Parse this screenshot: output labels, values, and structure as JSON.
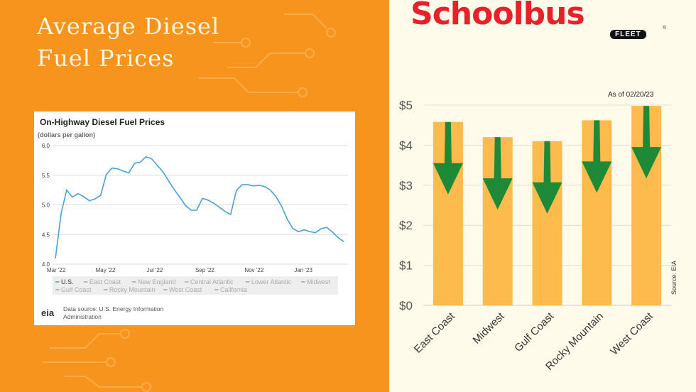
{
  "title_lines": [
    "Average Diesel",
    "Fuel Prices"
  ],
  "brand": {
    "logo_text": "Schoolbus",
    "fleet_text": "FLEET",
    "registered": "®"
  },
  "left_chart": {
    "title": "On-Highway Diesel Fuel Prices",
    "subtitle": "(dollars per gallon)",
    "legend": [
      "U.S.",
      "East Coast",
      "New England",
      "Central Atlantic",
      "Lower Atlantic",
      "Midwest",
      "Gulf Coast",
      "Rocky Mountain",
      "West Coast",
      "California"
    ],
    "source_text": "Data source: U.S. Energy Information Administration",
    "logo": "eia"
  },
  "right_chart": {
    "as_of": "As of 02/20/23",
    "source": "Source: EIA"
  },
  "colors": {
    "orange": "#F7941D",
    "bar": "#FDBA4D",
    "arrow": "#1E8A37",
    "line": "#4A9FD6"
  },
  "chart_data": [
    {
      "type": "line",
      "title": "On-Highway Diesel Fuel Prices",
      "ylabel": "(dollars per gallon)",
      "ylim": [
        4.0,
        6.0
      ],
      "yticks": [
        "6.0",
        "5.5",
        "5.0",
        "4.5",
        "4.0"
      ],
      "xticks": [
        "Mar '22",
        "May '22",
        "Jul '22",
        "Sep '22",
        "Nov '22",
        "Jan '23"
      ],
      "grid": true,
      "legend_position": "bottom",
      "series": [
        {
          "name": "U.S.",
          "points": [
            [
              "2022-02-28",
              4.1
            ],
            [
              "2022-03-07",
              4.85
            ],
            [
              "2022-03-14",
              5.25
            ],
            [
              "2022-03-21",
              5.13
            ],
            [
              "2022-03-28",
              5.19
            ],
            [
              "2022-04-04",
              5.14
            ],
            [
              "2022-04-11",
              5.07
            ],
            [
              "2022-04-18",
              5.1
            ],
            [
              "2022-04-25",
              5.16
            ],
            [
              "2022-05-02",
              5.51
            ],
            [
              "2022-05-09",
              5.62
            ],
            [
              "2022-05-16",
              5.61
            ],
            [
              "2022-05-23",
              5.57
            ],
            [
              "2022-05-30",
              5.54
            ],
            [
              "2022-06-06",
              5.7
            ],
            [
              "2022-06-13",
              5.72
            ],
            [
              "2022-06-20",
              5.81
            ],
            [
              "2022-06-27",
              5.78
            ],
            [
              "2022-07-04",
              5.67
            ],
            [
              "2022-07-11",
              5.56
            ],
            [
              "2022-07-18",
              5.41
            ],
            [
              "2022-07-25",
              5.26
            ],
            [
              "2022-08-01",
              5.13
            ],
            [
              "2022-08-08",
              4.99
            ],
            [
              "2022-08-15",
              4.91
            ],
            [
              "2022-08-22",
              4.91
            ],
            [
              "2022-08-29",
              5.11
            ],
            [
              "2022-09-05",
              5.08
            ],
            [
              "2022-09-12",
              5.03
            ],
            [
              "2022-09-19",
              4.96
            ],
            [
              "2022-09-26",
              4.89
            ],
            [
              "2022-10-03",
              4.84
            ],
            [
              "2022-10-10",
              5.24
            ],
            [
              "2022-10-17",
              5.34
            ],
            [
              "2022-10-24",
              5.34
            ],
            [
              "2022-10-31",
              5.32
            ],
            [
              "2022-11-07",
              5.33
            ],
            [
              "2022-11-14",
              5.31
            ],
            [
              "2022-11-21",
              5.25
            ],
            [
              "2022-11-28",
              5.14
            ],
            [
              "2022-12-05",
              4.98
            ],
            [
              "2022-12-12",
              4.76
            ],
            [
              "2022-12-19",
              4.6
            ],
            [
              "2022-12-26",
              4.55
            ],
            [
              "2023-01-02",
              4.58
            ],
            [
              "2023-01-09",
              4.55
            ],
            [
              "2023-01-16",
              4.53
            ],
            [
              "2023-01-23",
              4.6
            ],
            [
              "2023-01-30",
              4.62
            ],
            [
              "2023-02-06",
              4.54
            ],
            [
              "2023-02-13",
              4.45
            ],
            [
              "2023-02-20",
              4.38
            ]
          ]
        }
      ]
    },
    {
      "type": "bar",
      "categories": [
        "East Coast",
        "Midwest",
        "Gulf Coast",
        "Rocky Mountain",
        "West Coast"
      ],
      "values": [
        4.58,
        4.2,
        4.1,
        4.62,
        4.98
      ],
      "yticks": [
        "$0",
        "$1",
        "$2",
        "$3",
        "$4",
        "$5"
      ],
      "ylim": [
        0,
        5
      ],
      "grid": true
    }
  ]
}
